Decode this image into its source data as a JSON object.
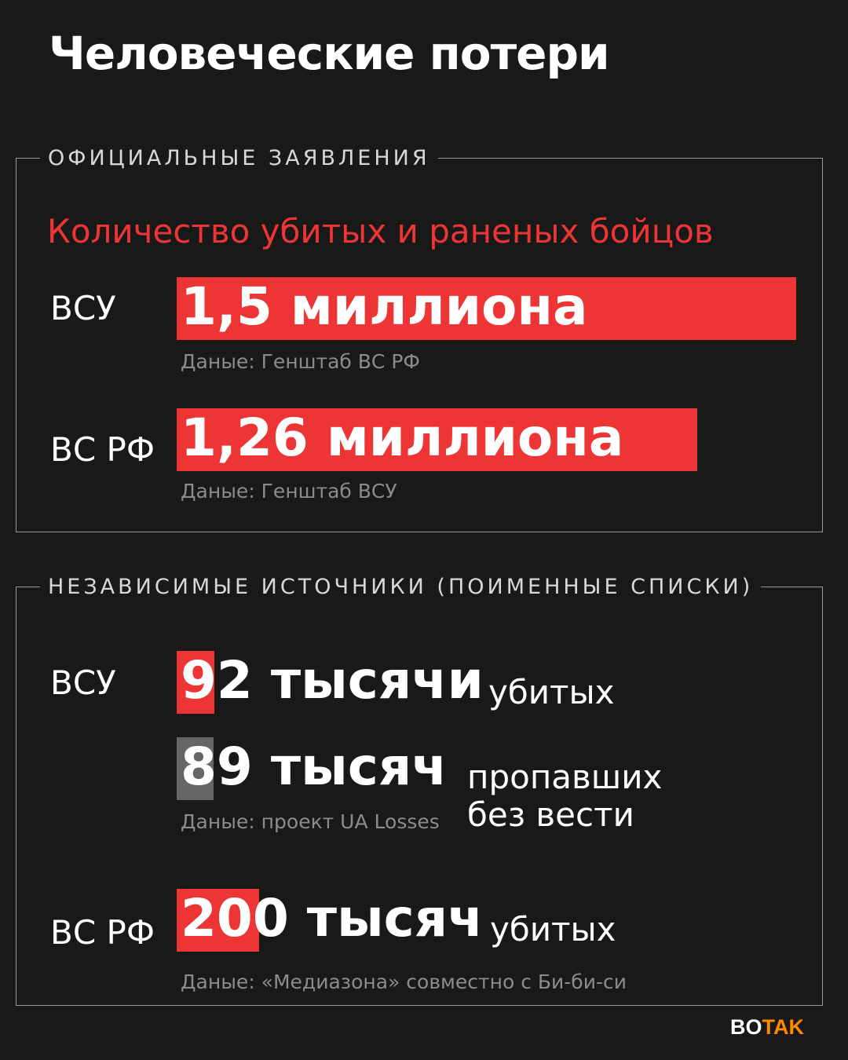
{
  "title": "Человеческие потери",
  "official": {
    "legend": "ОФИЦИАЛЬНЫЕ ЗАЯВЛЕНИЯ",
    "subtitle": "Количество убитых и раненых бойцов",
    "rows": [
      {
        "label": "ВСУ",
        "value_text": "1,5 миллиона",
        "source": "Даные: Генштаб ВС РФ"
      },
      {
        "label": "ВС РФ",
        "value_text": "1,26 миллиона",
        "source": "Даные: Генштаб ВСУ"
      }
    ]
  },
  "independent": {
    "legend": "НЕЗАВИСИМЫЕ ИСТОЧНИКИ (ПОИМЕННЫЕ СПИСКИ)",
    "rows": [
      {
        "label": "ВСУ",
        "value_text": "92 тысячи",
        "unit": "убитых",
        "source": ""
      },
      {
        "label": "",
        "value_text": "89 тысяч",
        "unit": "пропавших без вести",
        "unit_line1": "пропавших",
        "unit_line2": "без вести",
        "source": "Даные: проект UA Losses"
      },
      {
        "label": "ВС РФ",
        "value_text": "200 тысяч",
        "unit": "убитых",
        "source": "Даные: «Медиазона» совместно с Би-би-си"
      }
    ]
  },
  "colors": {
    "accent": "#ee3535",
    "missing": "#666666",
    "background": "#191919"
  },
  "logo": {
    "part1": "BO",
    "part2": "TAK",
    "color1": "#ffffff",
    "color2": "#ff8a00"
  },
  "chart_data": {
    "type": "bar",
    "orientation": "horizontal",
    "unit": "thousand people",
    "series": [
      {
        "categories": [
          "ВСУ",
          "ВС РФ"
        ],
        "values": [
          1500,
          1260
        ]
      },
      {
        "categories": [
          "ВСУ убитых",
          "ВСУ пропавших без вести",
          "ВС РФ убитых"
        ],
        "values": [
          92,
          89,
          200
        ]
      }
    ]
  }
}
